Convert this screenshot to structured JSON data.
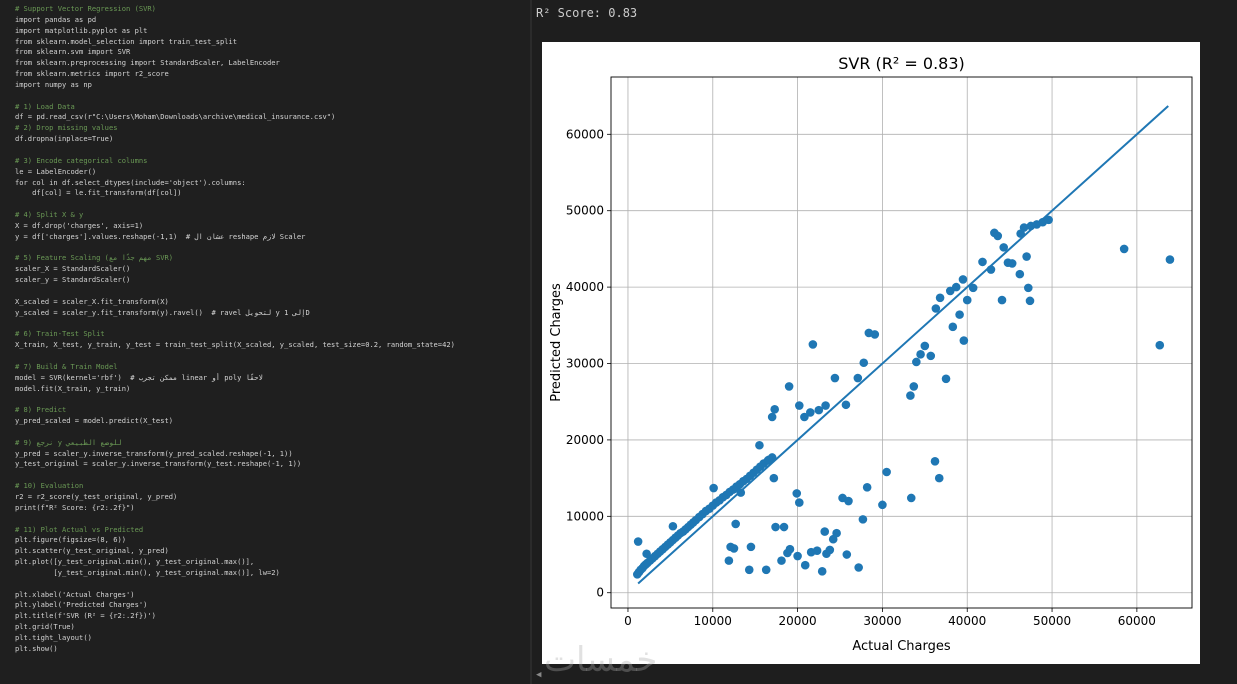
{
  "editor": {
    "lines": [
      {
        "t": "# Support Vector Regression (SVR)",
        "c": "#6a9955"
      },
      {
        "t": "import pandas as pd",
        "c": "#d4d4d4"
      },
      {
        "t": "import matplotlib.pyplot as plt",
        "c": "#d4d4d4"
      },
      {
        "t": "from sklearn.model_selection import train_test_split",
        "c": "#d4d4d4"
      },
      {
        "t": "from sklearn.svm import SVR",
        "c": "#d4d4d4"
      },
      {
        "t": "from sklearn.preprocessing import StandardScaler, LabelEncoder",
        "c": "#d4d4d4"
      },
      {
        "t": "from sklearn.metrics import r2_score",
        "c": "#d4d4d4"
      },
      {
        "t": "import numpy as np",
        "c": "#d4d4d4"
      },
      {
        "t": "",
        "c": "#d4d4d4"
      },
      {
        "t": "# 1) Load Data",
        "c": "#6a9955"
      },
      {
        "t": "df = pd.read_csv(r\"C:\\Users\\Moham\\Downloads\\archive\\medical_insurance.csv\")",
        "c": "#d4d4d4"
      },
      {
        "t": "# 2) Drop missing values",
        "c": "#6a9955"
      },
      {
        "t": "df.dropna(inplace=True)",
        "c": "#d4d4d4"
      },
      {
        "t": "",
        "c": "#d4d4d4"
      },
      {
        "t": "# 3) Encode categorical columns",
        "c": "#6a9955"
      },
      {
        "t": "le = LabelEncoder()",
        "c": "#d4d4d4"
      },
      {
        "t": "for col in df.select_dtypes(include='object').columns:",
        "c": "#d4d4d4"
      },
      {
        "t": "    df[col] = le.fit_transform(df[col])",
        "c": "#d4d4d4"
      },
      {
        "t": "",
        "c": "#d4d4d4"
      },
      {
        "t": "# 4) Split X & y",
        "c": "#6a9955"
      },
      {
        "t": "X = df.drop('charges', axis=1)",
        "c": "#d4d4d4"
      },
      {
        "t": "y = df['charges'].values.reshape(-1,1)  # عشان ال reshape لازم Scaler",
        "c": "#d4d4d4"
      },
      {
        "t": "",
        "c": "#d4d4d4"
      },
      {
        "t": "# 5) Feature Scaling (مهم جدًا مع SVR)",
        "c": "#6a9955"
      },
      {
        "t": "scaler_X = StandardScaler()",
        "c": "#d4d4d4"
      },
      {
        "t": "scaler_y = StandardScaler()",
        "c": "#d4d4d4"
      },
      {
        "t": "",
        "c": "#d4d4d4"
      },
      {
        "t": "X_scaled = scaler_X.fit_transform(X)",
        "c": "#d4d4d4"
      },
      {
        "t": "y_scaled = scaler_y.fit_transform(y).ravel()  # ravel لتحويل y إلى 1D",
        "c": "#d4d4d4"
      },
      {
        "t": "",
        "c": "#d4d4d4"
      },
      {
        "t": "# 6) Train-Test Split",
        "c": "#6a9955"
      },
      {
        "t": "X_train, X_test, y_train, y_test = train_test_split(X_scaled, y_scaled, test_size=0.2, random_state=42)",
        "c": "#d4d4d4"
      },
      {
        "t": "",
        "c": "#d4d4d4"
      },
      {
        "t": "# 7) Build & Train Model",
        "c": "#6a9955"
      },
      {
        "t": "model = SVR(kernel='rbf')  # ممكن تجرب linear أو poly لاحقًا",
        "c": "#d4d4d4"
      },
      {
        "t": "model.fit(X_train, y_train)",
        "c": "#d4d4d4"
      },
      {
        "t": "",
        "c": "#d4d4d4"
      },
      {
        "t": "# 8) Predict",
        "c": "#6a9955"
      },
      {
        "t": "y_pred_scaled = model.predict(X_test)",
        "c": "#d4d4d4"
      },
      {
        "t": "",
        "c": "#d4d4d4"
      },
      {
        "t": "# 9) نرجع y للوضع الطبيعي",
        "c": "#6a9955"
      },
      {
        "t": "y_pred = scaler_y.inverse_transform(y_pred_scaled.reshape(-1, 1))",
        "c": "#d4d4d4"
      },
      {
        "t": "y_test_original = scaler_y.inverse_transform(y_test.reshape(-1, 1))",
        "c": "#d4d4d4"
      },
      {
        "t": "",
        "c": "#d4d4d4"
      },
      {
        "t": "# 10) Evaluation",
        "c": "#6a9955"
      },
      {
        "t": "r2 = r2_score(y_test_original, y_pred)",
        "c": "#d4d4d4"
      },
      {
        "t": "print(f\"R² Score: {r2:.2f}\")",
        "c": "#d4d4d4"
      },
      {
        "t": "",
        "c": "#d4d4d4"
      },
      {
        "t": "# 11) Plot Actual vs Predicted",
        "c": "#6a9955"
      },
      {
        "t": "plt.figure(figsize=(8, 6))",
        "c": "#d4d4d4"
      },
      {
        "t": "plt.scatter(y_test_original, y_pred)",
        "c": "#d4d4d4"
      },
      {
        "t": "plt.plot([y_test_original.min(), y_test_original.max()],",
        "c": "#d4d4d4"
      },
      {
        "t": "         [y_test_original.min(), y_test_original.max()], lw=2)",
        "c": "#d4d4d4"
      },
      {
        "t": "",
        "c": "#d4d4d4"
      },
      {
        "t": "plt.xlabel('Actual Charges')",
        "c": "#d4d4d4"
      },
      {
        "t": "plt.ylabel('Predicted Charges')",
        "c": "#d4d4d4"
      },
      {
        "t": "plt.title(f'SVR (R² = {r2:.2f})')",
        "c": "#d4d4d4"
      },
      {
        "t": "plt.grid(True)",
        "c": "#d4d4d4"
      },
      {
        "t": "plt.tight_layout()",
        "c": "#d4d4d4"
      },
      {
        "t": "plt.show()",
        "c": "#d4d4d4"
      }
    ]
  },
  "output": {
    "score_text": "R² Score: 0.83",
    "watermark": "خمسات"
  },
  "chart_data": {
    "type": "scatter",
    "title": "SVR (R² = 0.83)",
    "xlabel": "Actual Charges",
    "ylabel": "Predicted Charges",
    "xlim": [
      -2000,
      66500
    ],
    "ylim": [
      -2000,
      67500
    ],
    "xticks": [
      0,
      10000,
      20000,
      30000,
      40000,
      50000,
      60000
    ],
    "yticks": [
      0,
      10000,
      20000,
      30000,
      40000,
      50000,
      60000
    ],
    "grid": true,
    "point_color": "#1f77b4",
    "line_color": "#1f77b4",
    "series": [
      {
        "kind": "scatter",
        "points": [
          [
            1100,
            2400
          ],
          [
            1300,
            2700
          ],
          [
            1500,
            3000
          ],
          [
            1700,
            3200
          ],
          [
            1900,
            3500
          ],
          [
            2100,
            3700
          ],
          [
            2300,
            3900
          ],
          [
            2600,
            4200
          ],
          [
            2900,
            4500
          ],
          [
            3200,
            4800
          ],
          [
            3500,
            5100
          ],
          [
            3800,
            5400
          ],
          [
            4100,
            5700
          ],
          [
            4400,
            6000
          ],
          [
            4700,
            6300
          ],
          [
            5000,
            6600
          ],
          [
            5300,
            6900
          ],
          [
            5600,
            7200
          ],
          [
            5900,
            7500
          ],
          [
            6200,
            7800
          ],
          [
            6500,
            8000
          ],
          [
            6800,
            8300
          ],
          [
            7100,
            8600
          ],
          [
            7400,
            8900
          ],
          [
            7700,
            9200
          ],
          [
            8000,
            9500
          ],
          [
            8400,
            9900
          ],
          [
            8800,
            10300
          ],
          [
            9200,
            10700
          ],
          [
            9600,
            11000
          ],
          [
            10000,
            11400
          ],
          [
            10400,
            11800
          ],
          [
            10800,
            12100
          ],
          [
            11200,
            12500
          ],
          [
            11600,
            12800
          ],
          [
            12000,
            13200
          ],
          [
            12400,
            13500
          ],
          [
            12800,
            13900
          ],
          [
            13200,
            14200
          ],
          [
            13600,
            14600
          ],
          [
            14000,
            14900
          ],
          [
            14400,
            15300
          ],
          [
            14800,
            15700
          ],
          [
            15200,
            16100
          ],
          [
            15600,
            16500
          ],
          [
            16000,
            16900
          ],
          [
            16500,
            17300
          ],
          [
            17000,
            17700
          ],
          [
            1200,
            6700
          ],
          [
            2200,
            5100
          ],
          [
            5300,
            8700
          ],
          [
            10100,
            13700
          ],
          [
            13300,
            13100
          ],
          [
            15500,
            19300
          ],
          [
            16600,
            17400
          ],
          [
            17200,
            15000
          ],
          [
            17000,
            23000
          ],
          [
            17300,
            24000
          ],
          [
            19000,
            27000
          ],
          [
            20200,
            24500
          ],
          [
            20800,
            23000
          ],
          [
            21500,
            23600
          ],
          [
            21800,
            32500
          ],
          [
            22500,
            23900
          ],
          [
            23300,
            24500
          ],
          [
            24400,
            28100
          ],
          [
            25700,
            24600
          ],
          [
            27100,
            28100
          ],
          [
            27800,
            30100
          ],
          [
            28400,
            34000
          ],
          [
            29100,
            33800
          ],
          [
            33300,
            25800
          ],
          [
            33700,
            27000
          ],
          [
            34000,
            30200
          ],
          [
            34500,
            31200
          ],
          [
            35000,
            32300
          ],
          [
            35700,
            31000
          ],
          [
            36300,
            37200
          ],
          [
            36800,
            38600
          ],
          [
            37500,
            28000
          ],
          [
            38000,
            39500
          ],
          [
            38300,
            34800
          ],
          [
            38700,
            40000
          ],
          [
            39100,
            36400
          ],
          [
            39500,
            41000
          ],
          [
            39600,
            33000
          ],
          [
            40000,
            38300
          ],
          [
            40700,
            39900
          ],
          [
            41800,
            43300
          ],
          [
            42800,
            42300
          ],
          [
            43200,
            47100
          ],
          [
            43600,
            46700
          ],
          [
            44100,
            38300
          ],
          [
            44300,
            45200
          ],
          [
            44800,
            43200
          ],
          [
            45300,
            43100
          ],
          [
            46200,
            41700
          ],
          [
            46300,
            47000
          ],
          [
            46700,
            47800
          ],
          [
            47000,
            44000
          ],
          [
            47200,
            39900
          ],
          [
            47400,
            38200
          ],
          [
            47500,
            48000
          ],
          [
            48200,
            48200
          ],
          [
            48900,
            48500
          ],
          [
            49600,
            48800
          ],
          [
            11900,
            4200
          ],
          [
            12100,
            6000
          ],
          [
            12500,
            5800
          ],
          [
            12700,
            9000
          ],
          [
            14300,
            3000
          ],
          [
            14500,
            6000
          ],
          [
            16300,
            3000
          ],
          [
            17400,
            8600
          ],
          [
            18100,
            4200
          ],
          [
            18400,
            8600
          ],
          [
            18800,
            5200
          ],
          [
            19100,
            5700
          ],
          [
            19900,
            13000
          ],
          [
            20000,
            4800
          ],
          [
            20200,
            11800
          ],
          [
            20900,
            3600
          ],
          [
            21600,
            5300
          ],
          [
            22300,
            5500
          ],
          [
            22900,
            2800
          ],
          [
            23200,
            8000
          ],
          [
            23400,
            5100
          ],
          [
            23800,
            5600
          ],
          [
            24200,
            7000
          ],
          [
            24600,
            7800
          ],
          [
            25300,
            12400
          ],
          [
            25800,
            5000
          ],
          [
            26000,
            12000
          ],
          [
            27200,
            3300
          ],
          [
            27700,
            9600
          ],
          [
            28200,
            13800
          ],
          [
            30000,
            11500
          ],
          [
            30500,
            15800
          ],
          [
            33400,
            12400
          ],
          [
            36200,
            17200
          ],
          [
            36700,
            15000
          ],
          [
            58500,
            45000
          ],
          [
            62700,
            32400
          ],
          [
            63900,
            43600
          ]
        ]
      },
      {
        "kind": "line",
        "points": [
          [
            1200,
            1200
          ],
          [
            63700,
            63700
          ]
        ]
      }
    ]
  }
}
